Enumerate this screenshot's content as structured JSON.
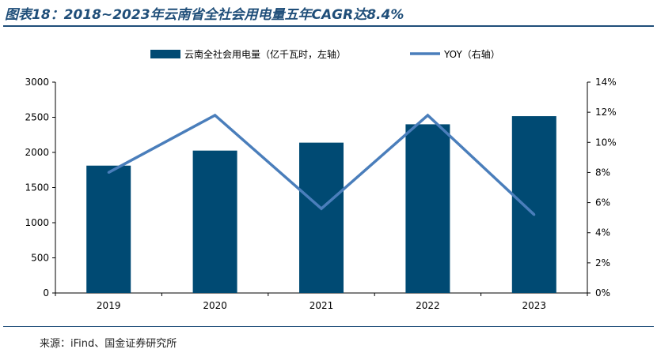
{
  "title": "图表18：2018~2023年云南省全社会用电量五年CAGR达8.4%",
  "source": "来源：iFind、国金证券研究所",
  "colors": {
    "bar": "#004a73",
    "line": "#4a7ebb",
    "title": "#1f4e79"
  },
  "chart_data": {
    "type": "bar",
    "categories": [
      "2019",
      "2020",
      "2021",
      "2022",
      "2023"
    ],
    "series": [
      {
        "name": "云南全社会用电量（亿千瓦时，左轴）",
        "type": "bar",
        "axis": "left",
        "values": [
          1812,
          2026,
          2139,
          2400,
          2516
        ]
      },
      {
        "name": "YOY（右轴）",
        "type": "line",
        "axis": "right",
        "values": [
          8.0,
          11.8,
          5.6,
          11.8,
          5.2
        ]
      }
    ],
    "yleft": {
      "min": 0,
      "max": 3000,
      "ticks": [
        "0",
        "500",
        "1000",
        "1500",
        "2000",
        "2500",
        "3000"
      ]
    },
    "yright": {
      "min": 0,
      "max": 14,
      "ticks": [
        "0%",
        "2%",
        "4%",
        "6%",
        "8%",
        "10%",
        "12%",
        "14%"
      ]
    },
    "legend": "top-center",
    "grid": false
  }
}
